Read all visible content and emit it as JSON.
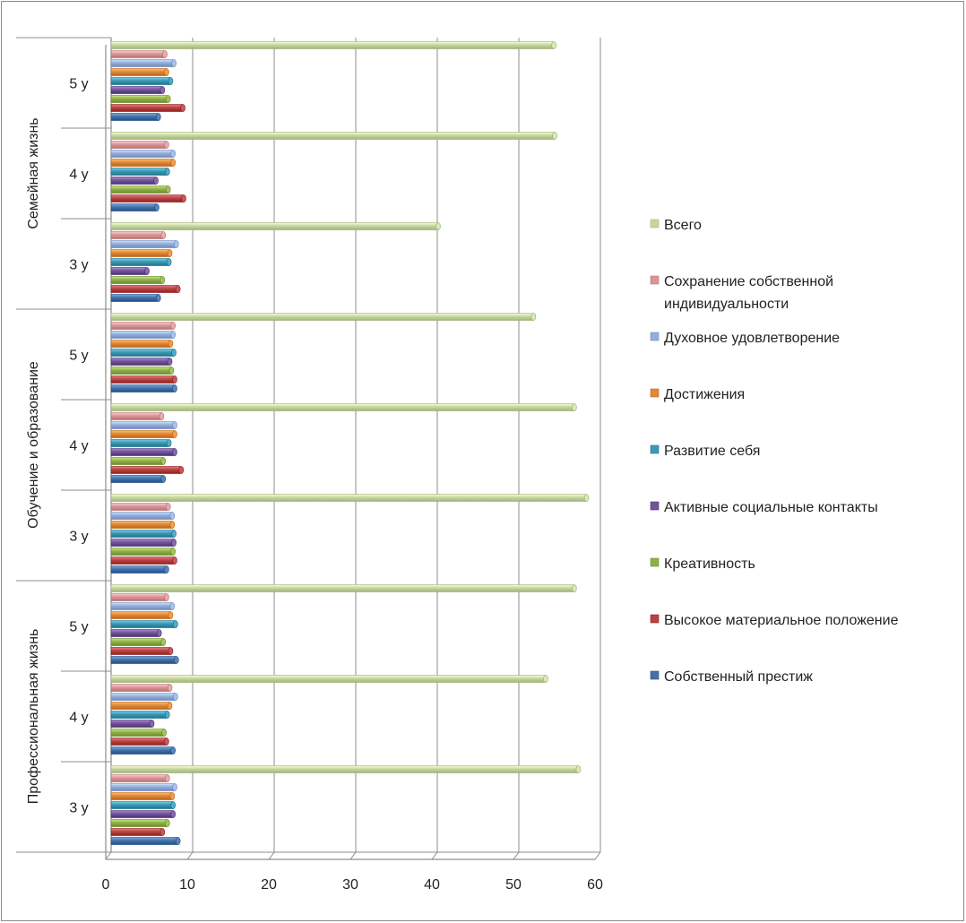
{
  "chart_data": {
    "type": "bar",
    "orientation": "horizontal",
    "style": "3d-clustered-bar",
    "title": "",
    "xlabel": "",
    "ylabel": "",
    "xlim": [
      0,
      60
    ],
    "x_ticks": [
      0,
      10,
      20,
      30,
      40,
      50,
      60
    ],
    "grid": "vertical major gridlines",
    "legend_position": "right",
    "groups": [
      "Профессиональная жизнь",
      "Обучение и образование",
      "Семейная жизнь"
    ],
    "categories": [
      {
        "group": "Профессиональная жизнь",
        "label": "3 у"
      },
      {
        "group": "Профессиональная жизнь",
        "label": "4 у"
      },
      {
        "group": "Профессиональная жизнь",
        "label": "5 у"
      },
      {
        "group": "Обучение и образование",
        "label": "3 у"
      },
      {
        "group": "Обучение и образование",
        "label": "4 у"
      },
      {
        "group": "Обучение и образование",
        "label": "5 у"
      },
      {
        "group": "Семейная жизнь",
        "label": "3 у"
      },
      {
        "group": "Семейная жизнь",
        "label": "4 у"
      },
      {
        "group": "Семейная жизнь",
        "label": "5 у"
      }
    ],
    "series": [
      {
        "name": "Собственный престиж",
        "color": "#4472A8",
        "values": [
          8.2,
          7.6,
          8.0,
          6.8,
          6.4,
          7.8,
          5.8,
          5.6,
          5.8
        ]
      },
      {
        "name": "Высокое материальное положение",
        "color": "#B64444",
        "values": [
          6.3,
          6.8,
          7.3,
          7.8,
          8.6,
          7.8,
          8.2,
          8.9,
          8.8
        ]
      },
      {
        "name": "Креативность",
        "color": "#8FB04A",
        "values": [
          6.9,
          6.5,
          6.4,
          7.6,
          6.4,
          7.4,
          6.3,
          7.0,
          7.0
        ]
      },
      {
        "name": "Активные социальные контакты",
        "color": "#72549A",
        "values": [
          7.6,
          5.0,
          5.9,
          7.7,
          7.8,
          7.2,
          4.4,
          5.5,
          6.3
        ]
      },
      {
        "name": "Развитие себя",
        "color": "#3E98B3",
        "values": [
          7.6,
          6.9,
          7.9,
          7.7,
          7.1,
          7.7,
          7.1,
          6.9,
          7.3
        ]
      },
      {
        "name": "Достижения",
        "color": "#E0883A",
        "values": [
          7.5,
          7.2,
          7.3,
          7.5,
          7.8,
          7.3,
          7.2,
          7.6,
          6.8
        ]
      },
      {
        "name": "Духовное удовлетворение",
        "color": "#94AEDB",
        "values": [
          7.8,
          7.9,
          7.5,
          7.5,
          7.8,
          7.6,
          8.0,
          7.6,
          7.7
        ]
      },
      {
        "name": "Сохранение собственной индивидуальности",
        "color": "#D99597",
        "values": [
          6.9,
          7.2,
          6.8,
          7.0,
          6.2,
          7.6,
          6.4,
          6.8,
          6.6
        ]
      },
      {
        "name": "Всего",
        "color": "#C4D79F",
        "values": [
          57.3,
          53.3,
          56.8,
          58.3,
          56.8,
          51.8,
          40.1,
          54.4,
          54.3
        ]
      }
    ],
    "legend": [
      {
        "label": "Всего",
        "color": "#C4D79F"
      },
      {
        "label": "Сохранение собственной индивидуальности",
        "color": "#D99597"
      },
      {
        "label": "Духовное удовлетворение",
        "color": "#94AEDB"
      },
      {
        "label": "Достижения",
        "color": "#E0883A"
      },
      {
        "label": "Развитие себя",
        "color": "#3E98B3"
      },
      {
        "label": "Активные социальные контакты",
        "color": "#72549A"
      },
      {
        "label": "Креативность",
        "color": "#8FB04A"
      },
      {
        "label": "Высокое материальное положение",
        "color": "#B64444"
      },
      {
        "label": "Собственный престиж",
        "color": "#4472A8"
      }
    ],
    "axis_line_color": "#8c8c8c",
    "gridline_color": "#8c8c8c"
  }
}
